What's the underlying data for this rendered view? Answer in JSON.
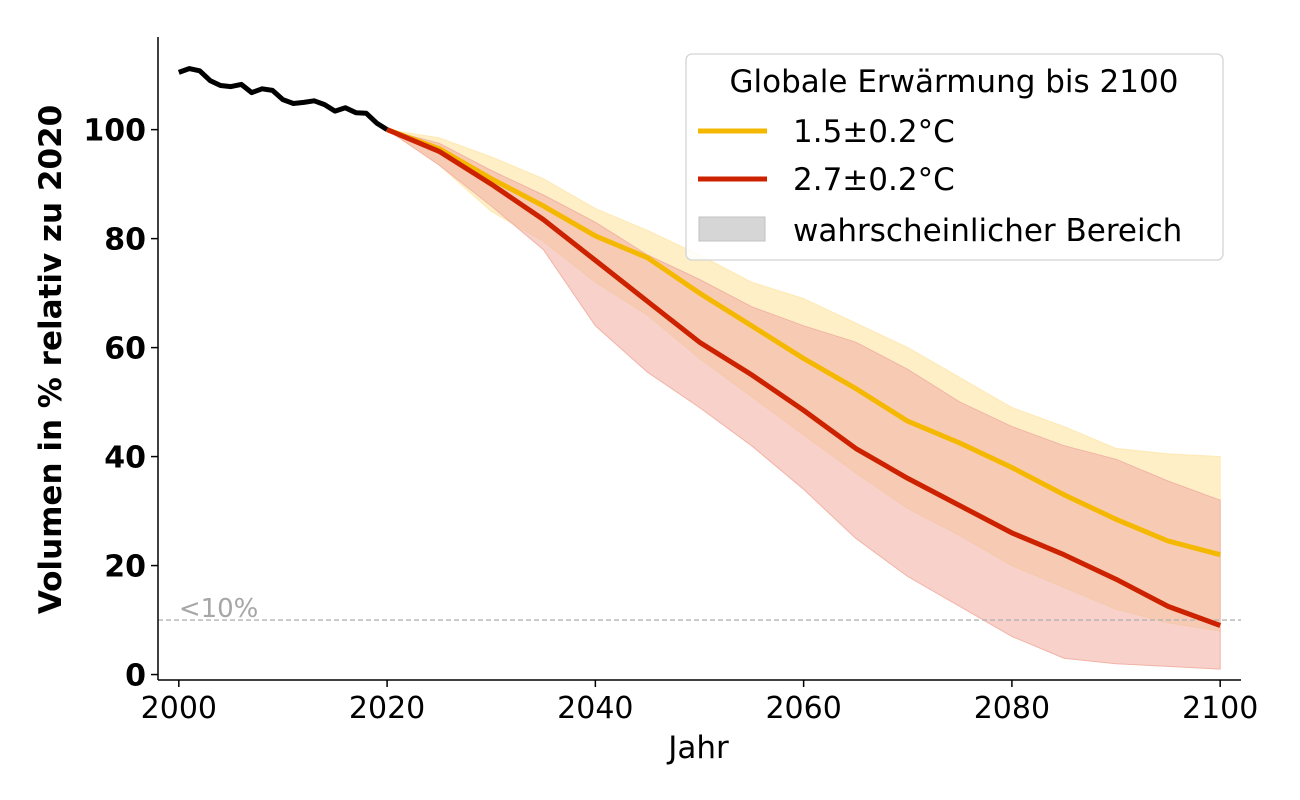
{
  "chart_data": {
    "type": "line",
    "xlabel": "Jahr",
    "ylabel": "Volumen in % relativ zu 2020",
    "xlim": [
      1998,
      2102
    ],
    "ylim": [
      -1,
      117
    ],
    "xticks": [
      "2000",
      "2020",
      "2040",
      "2060",
      "2080",
      "2100"
    ],
    "yticks": [
      "0",
      "20",
      "40",
      "60",
      "80",
      "100"
    ],
    "grid": false,
    "legend": {
      "title": "Globale Erwärmung bis 2100",
      "placement": "top-right",
      "entries": [
        "1.5±0.2°C",
        "2.7±0.2°C",
        "wahrscheinlicher Bereich"
      ]
    },
    "reference_line": {
      "y": 10,
      "label": "<10%",
      "color": "#b3b3b3"
    },
    "historical": {
      "color": "#000000",
      "x": [
        2000,
        2001,
        2002,
        2003,
        2004,
        2005,
        2006,
        2007,
        2008,
        2009,
        2010,
        2011,
        2012,
        2013,
        2014,
        2015,
        2016,
        2017,
        2018,
        2019,
        2020
      ],
      "y": [
        110.5,
        111.2,
        110.8,
        109.0,
        108.1,
        107.9,
        108.3,
        106.8,
        107.5,
        107.2,
        105.5,
        104.8,
        105.0,
        105.3,
        104.6,
        103.4,
        104.0,
        103.1,
        103.0,
        101.2,
        100.0
      ]
    },
    "series": [
      {
        "name": "1.5±0.2°C",
        "color": "#f5b800",
        "band_color": "#fde9b3",
        "x": [
          2020,
          2025,
          2030,
          2035,
          2040,
          2045,
          2050,
          2055,
          2060,
          2065,
          2070,
          2075,
          2080,
          2085,
          2090,
          2095,
          2100
        ],
        "y": [
          100,
          96.5,
          91.0,
          86.0,
          80.5,
          76.5,
          70.0,
          64.0,
          58.0,
          52.5,
          46.5,
          42.5,
          38.0,
          33.0,
          28.5,
          24.5,
          22.0
        ],
        "lower": [
          100,
          93.5,
          85.0,
          79.5,
          72.0,
          66.0,
          58.0,
          51.0,
          44.0,
          37.0,
          30.5,
          25.5,
          20.0,
          16.0,
          12.0,
          9.5,
          8.0
        ],
        "upper": [
          100,
          98.5,
          95.0,
          91.0,
          85.5,
          81.5,
          77.0,
          72.0,
          69.0,
          64.5,
          60.0,
          54.5,
          49.0,
          45.5,
          41.5,
          40.5,
          40.0
        ]
      },
      {
        "name": "2.7±0.2°C",
        "color": "#cc2200",
        "band_color": "#f2b3a6",
        "x": [
          2020,
          2025,
          2030,
          2035,
          2040,
          2045,
          2050,
          2055,
          2060,
          2065,
          2070,
          2075,
          2080,
          2085,
          2090,
          2095,
          2100
        ],
        "y": [
          100,
          96.0,
          90.0,
          83.5,
          76.0,
          68.5,
          61.0,
          55.0,
          48.5,
          41.5,
          36.0,
          31.0,
          26.0,
          22.0,
          17.5,
          12.5,
          9.0
        ],
        "lower": [
          100,
          93.5,
          86.0,
          78.0,
          64.0,
          55.5,
          49.0,
          42.0,
          34.0,
          25.0,
          18.0,
          12.5,
          7.0,
          3.0,
          2.0,
          1.5,
          1.0
        ],
        "upper": [
          100,
          97.5,
          92.5,
          88.0,
          83.0,
          77.0,
          72.5,
          67.5,
          64.0,
          61.0,
          56.0,
          50.0,
          45.5,
          42.0,
          39.5,
          35.5,
          32.0
        ]
      }
    ]
  }
}
